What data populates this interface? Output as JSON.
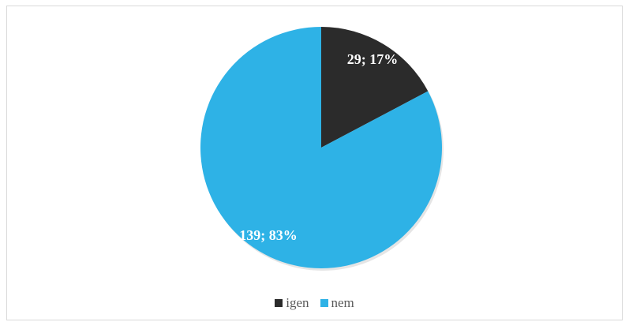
{
  "chart_data": {
    "type": "pie",
    "categories": [
      "igen",
      "nem"
    ],
    "values": [
      29,
      139
    ],
    "percentages": [
      17,
      83
    ],
    "data_labels": [
      "29; 17%",
      "139; 83%"
    ],
    "colors": [
      "#2b2b2b",
      "#2eb2e6"
    ],
    "legend": {
      "position": "bottom",
      "entries": [
        "igen",
        "nem"
      ]
    },
    "start_angle": "12 o'clock",
    "direction": "clockwise"
  }
}
